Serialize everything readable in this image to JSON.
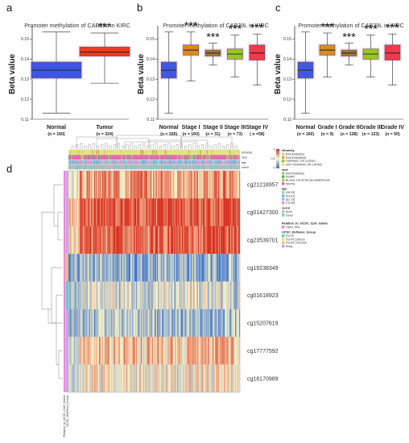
{
  "panels": [
    {
      "letter": "a",
      "type": "box",
      "title": "Promoter methylation of CAB39L in KIRC",
      "ylabel": "Beta value",
      "ylim": [
        0.11,
        0.155
      ],
      "yticks": [
        "0.15",
        "0.14",
        "0.13",
        "0.12",
        "0.11"
      ],
      "ytick_values": [
        0.15,
        0.14,
        0.13,
        0.12,
        0.11
      ],
      "categories": [
        {
          "label": "Normal",
          "n": "(n = 160)",
          "color": "#3f55e3",
          "stars": "",
          "min": 0.113,
          "q1": 0.1305,
          "median": 0.1345,
          "q3": 0.1385,
          "max": 0.1535
        },
        {
          "label": "Tumor",
          "n": "(n = 324)",
          "color": "#ee3c1c",
          "stars": "***",
          "min": 0.128,
          "q1": 0.1415,
          "median": 0.1435,
          "q3": 0.146,
          "max": 0.153
        }
      ]
    },
    {
      "letter": "b",
      "type": "box",
      "title": "Promoter methylation of CAB39L in KIRC",
      "ylabel": "Beta value",
      "ylim": [
        0.11,
        0.155
      ],
      "yticks": [
        "0.15",
        "0.14",
        "0.13",
        "0.12",
        "0.11"
      ],
      "ytick_values": [
        0.15,
        0.14,
        0.13,
        0.12,
        0.11
      ],
      "categories": [
        {
          "label": "Normal",
          "n": "(n = 160)",
          "color": "#4258e0",
          "stars": "",
          "min": 0.113,
          "q1": 0.1305,
          "median": 0.1345,
          "q3": 0.1385,
          "max": 0.1535
        },
        {
          "label": "Stage I",
          "n": "(n = 160)",
          "color": "#d98a26",
          "stars": "***",
          "min": 0.129,
          "q1": 0.142,
          "median": 0.1445,
          "q3": 0.147,
          "max": 0.1535
        },
        {
          "label": "Stage II",
          "n": "(n = 31)",
          "color": "#a07838",
          "stars": "***",
          "min": 0.137,
          "q1": 0.1415,
          "median": 0.143,
          "q3": 0.1445,
          "max": 0.148
        },
        {
          "label": "Stage III",
          "n": "(n = 73)",
          "color": "#98c81e",
          "stars": "***",
          "min": 0.131,
          "q1": 0.14,
          "median": 0.1425,
          "q3": 0.145,
          "max": 0.152
        },
        {
          "label": "Stage IV",
          "n": "( n =58)",
          "color": "#ee3a4a",
          "stars": "***",
          "min": 0.127,
          "q1": 0.1395,
          "median": 0.143,
          "q3": 0.147,
          "max": 0.1525
        }
      ]
    },
    {
      "letter": "c",
      "type": "box",
      "title": "Promoter methylation of CAB39L in KIRC",
      "ylabel": "Beta value",
      "ylim": [
        0.11,
        0.155
      ],
      "yticks": [
        "0.15",
        "0.14",
        "0.13",
        "0.12",
        "0.11"
      ],
      "ytick_values": [
        0.15,
        0.14,
        0.13,
        0.12,
        0.11
      ],
      "categories": [
        {
          "label": "Normal",
          "n": "(n = 160)",
          "color": "#4258e0",
          "stars": "",
          "min": 0.113,
          "q1": 0.1305,
          "median": 0.1345,
          "q3": 0.1385,
          "max": 0.1535
        },
        {
          "label": "Grade I",
          "n": "(n = 9)",
          "color": "#d98a26",
          "stars": "***",
          "min": 0.131,
          "q1": 0.142,
          "median": 0.1445,
          "q3": 0.147,
          "max": 0.153
        },
        {
          "label": "Grade II",
          "n": "(n = 138)",
          "color": "#a07838",
          "stars": "***",
          "min": 0.137,
          "q1": 0.1415,
          "median": 0.143,
          "q3": 0.1445,
          "max": 0.148
        },
        {
          "label": "Grade III",
          "n": "(n = 123)",
          "color": "#98c81e",
          "stars": "***",
          "min": 0.131,
          "q1": 0.14,
          "median": 0.1425,
          "q3": 0.145,
          "max": 0.152
        },
        {
          "label": "Grade IV",
          "n": "(n = 50)",
          "color": "#ee3a4a",
          "stars": "***",
          "min": 0.127,
          "q1": 0.1395,
          "median": 0.143,
          "q3": 0.147,
          "max": 0.1525
        }
      ]
    }
  ],
  "heatmap": {
    "letter": "d",
    "type": "heatmap",
    "probes": [
      {
        "name": "cg21218957",
        "level": 0.72
      },
      {
        "name": "cg01427300",
        "level": 0.95
      },
      {
        "name": "cg23539701",
        "level": 0.88
      },
      {
        "name": "cg19238349",
        "level": 0.22
      },
      {
        "name": "cg01618923",
        "level": 0.4
      },
      {
        "name": "cg15207619",
        "level": 0.3
      },
      {
        "name": "cg17777592",
        "level": 0.62
      },
      {
        "name": "cg18170989",
        "level": 0.52
      }
    ],
    "tracks": [
      "ethnicity",
      "race",
      "age",
      "event"
    ],
    "bottom_labels": [
      "Relation_to_UCSC_CpG_Island",
      "UCSC_RefGene_Group"
    ],
    "colors": {
      "low": "#3b6fc9",
      "mid": "#fbf6c8",
      "high": "#d7301f"
    },
    "legend": {
      "scale_ticks": [
        "1",
        "0.5",
        "0"
      ],
      "groups": [
        {
          "title": "ethnicity",
          "items": [
            {
              "label": "[Not Available]",
              "color": "#e7c37a"
            },
            {
              "label": "[Not Evaluated]",
              "color": "#c9a45a"
            },
            {
              "label": "HISPANIC OR LATINO",
              "color": "#9bbb3a"
            },
            {
              "label": "NOT HISPANIC OR LATINO",
              "color": "#e2e27a"
            }
          ]
        },
        {
          "title": "race",
          "items": [
            {
              "label": "[Not Available]",
              "color": "#8fc98f"
            },
            {
              "label": "ASIAN",
              "color": "#5fae72"
            },
            {
              "label": "BLACK OR AFRICAN AMERICAN",
              "color": "#b4c94a"
            },
            {
              "label": "WHITE",
              "color": "#e06aa8"
            }
          ]
        },
        {
          "title": "age",
          "items": [
            {
              "label": "(26,53]",
              "color": "#9ad0c2"
            },
            {
              "label": "(53,61]",
              "color": "#6fb6d6"
            },
            {
              "label": "(61,70]",
              "color": "#b9a7d9"
            },
            {
              "label": "(70,90]",
              "color": "#d79ad7"
            }
          ]
        },
        {
          "title": "event",
          "items": [
            {
              "label": "Alive",
              "color": "#b8b8b8"
            },
            {
              "label": "Dead",
              "color": "#7cc8c0"
            }
          ]
        },
        {
          "title": "Relation_to_UCSC_CpG_Island",
          "items": [
            {
              "label": "Open_Sea",
              "color": "#e58ad8"
            }
          ]
        },
        {
          "title": "UCSC_RefGene_Group",
          "items": [
            {
              "label": "3'UTR",
              "color": "#58c9d0"
            },
            {
              "label": "5'UTR;1stExon",
              "color": "#e8e86a"
            },
            {
              "label": "5'UTR;TSS1500",
              "color": "#f1b46a"
            },
            {
              "label": "Body",
              "color": "#c7a0e8"
            }
          ]
        }
      ]
    }
  }
}
